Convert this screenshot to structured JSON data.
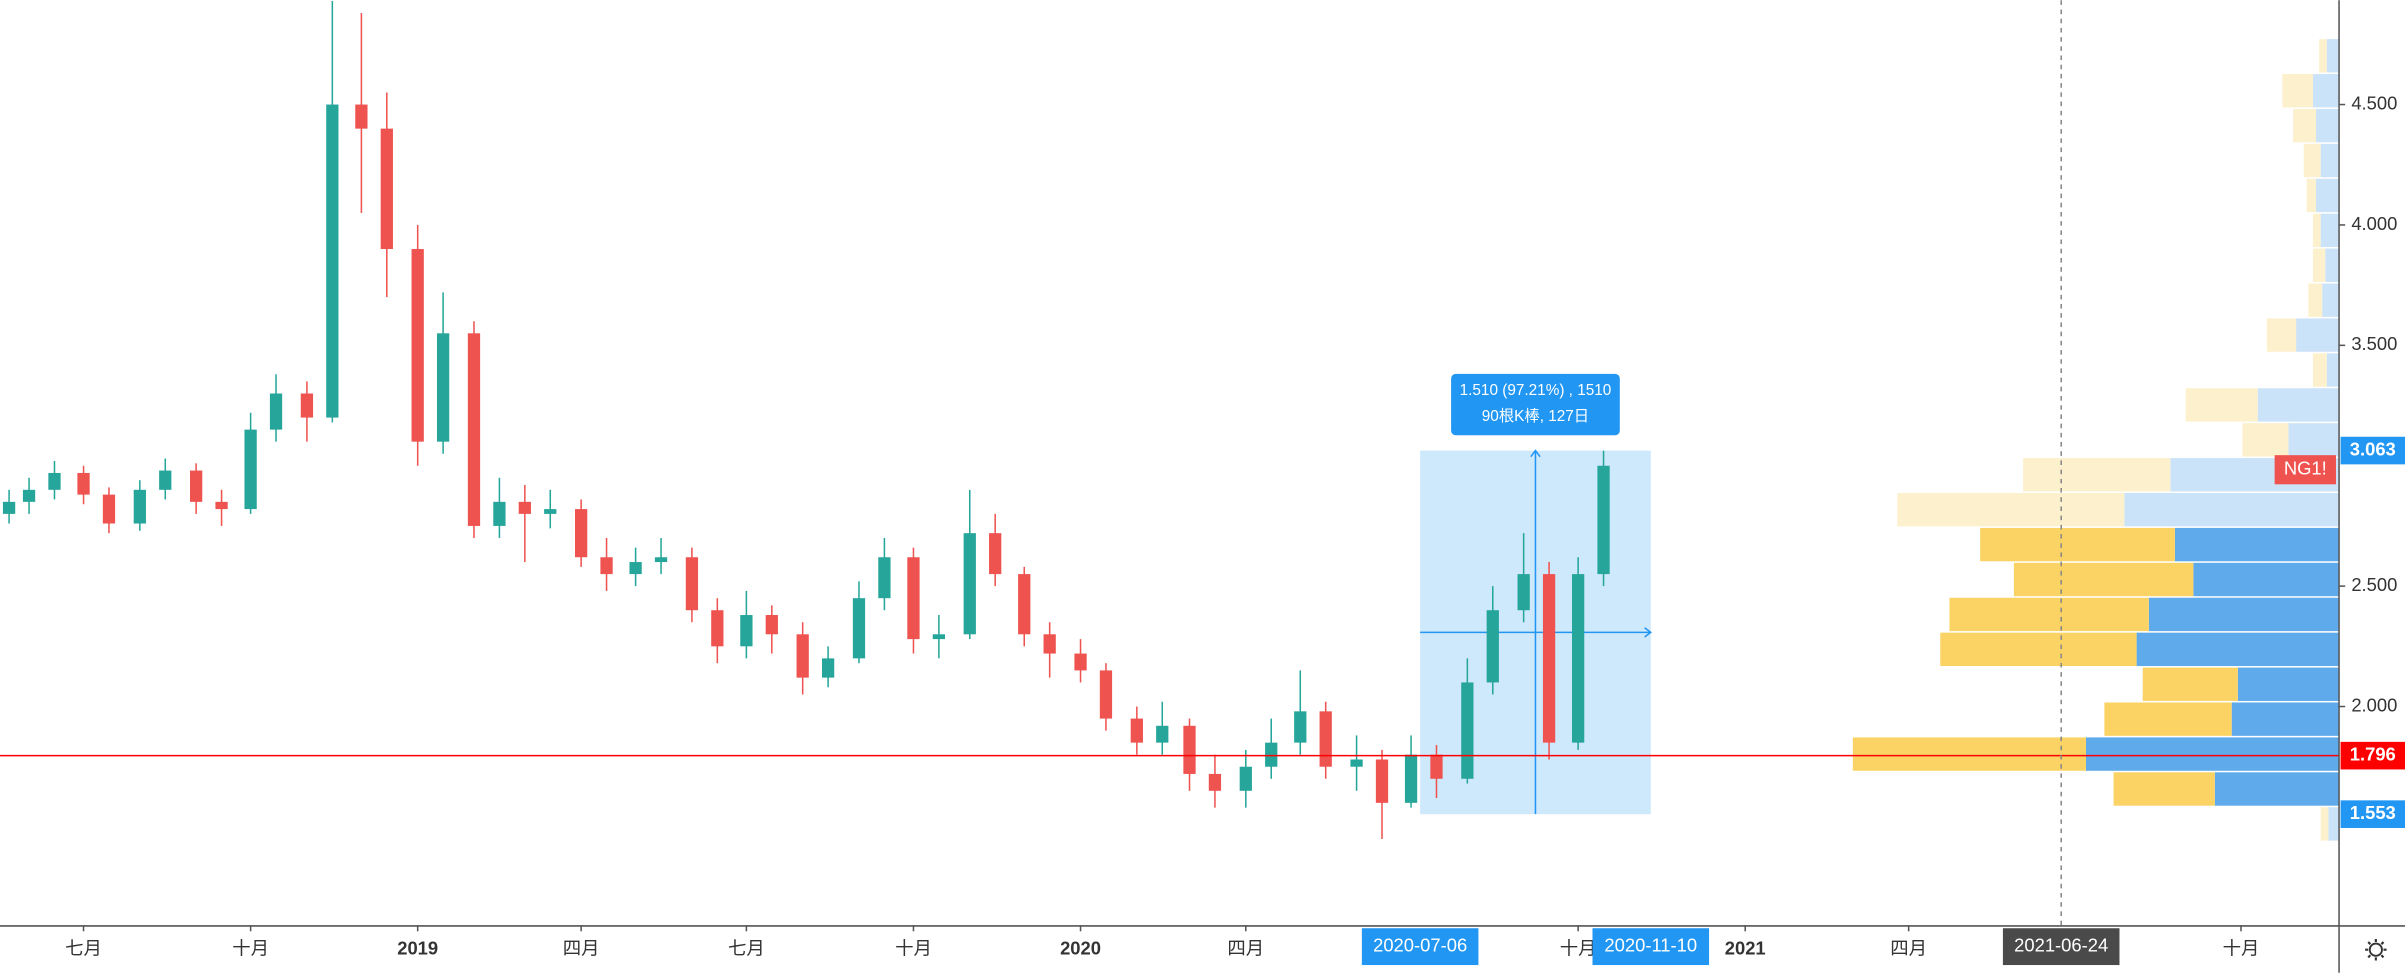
{
  "chart_data": {
    "type": "candlestick",
    "symbol": "NG1!",
    "x": [
      "2018-05-21",
      "2018-06-01",
      "2018-06-15",
      "2018-07-01",
      "2018-07-15",
      "2018-08-01",
      "2018-08-15",
      "2018-09-01",
      "2018-09-15",
      "2018-10-01",
      "2018-10-15",
      "2018-11-01",
      "2018-11-15",
      "2018-12-01",
      "2018-12-15",
      "2019-01-01",
      "2019-01-15",
      "2019-02-01",
      "2019-02-15",
      "2019-03-01",
      "2019-03-15",
      "2019-04-01",
      "2019-04-15",
      "2019-05-01",
      "2019-05-15",
      "2019-06-01",
      "2019-06-15",
      "2019-07-01",
      "2019-07-15",
      "2019-08-01",
      "2019-08-15",
      "2019-09-01",
      "2019-09-15",
      "2019-10-01",
      "2019-10-15",
      "2019-11-01",
      "2019-11-15",
      "2019-12-01",
      "2019-12-15",
      "2020-01-01",
      "2020-01-15",
      "2020-02-01",
      "2020-02-15",
      "2020-03-01",
      "2020-03-15",
      "2020-04-01",
      "2020-04-15",
      "2020-05-01",
      "2020-05-15",
      "2020-06-01",
      "2020-06-15",
      "2020-07-01",
      "2020-07-15",
      "2020-08-01",
      "2020-08-15",
      "2020-09-01",
      "2020-09-15",
      "2020-10-01",
      "2020-10-15"
    ],
    "open": [
      2.8,
      2.85,
      2.9,
      2.97,
      2.88,
      2.76,
      2.9,
      2.98,
      2.85,
      2.82,
      3.15,
      3.3,
      3.2,
      4.5,
      4.4,
      3.9,
      3.1,
      3.55,
      2.75,
      2.85,
      2.8,
      2.82,
      2.62,
      2.55,
      2.6,
      2.62,
      2.4,
      2.25,
      2.38,
      2.3,
      2.12,
      2.2,
      2.45,
      2.62,
      2.28,
      2.3,
      2.72,
      2.55,
      2.3,
      2.22,
      2.15,
      1.95,
      1.85,
      1.92,
      1.72,
      1.65,
      1.75,
      1.85,
      1.98,
      1.75,
      1.78,
      1.6,
      1.8,
      1.7,
      2.1,
      2.4,
      2.55,
      1.85,
      2.55
    ],
    "high": [
      2.9,
      2.95,
      3.02,
      3.0,
      2.91,
      2.94,
      3.03,
      3.01,
      2.9,
      3.22,
      3.38,
      3.35,
      4.93,
      4.88,
      4.55,
      4.0,
      3.72,
      3.6,
      2.95,
      2.92,
      2.9,
      2.86,
      2.7,
      2.66,
      2.7,
      2.66,
      2.45,
      2.48,
      2.42,
      2.35,
      2.25,
      2.52,
      2.7,
      2.66,
      2.38,
      2.9,
      2.8,
      2.58,
      2.35,
      2.28,
      2.18,
      2.0,
      2.02,
      1.95,
      1.8,
      1.82,
      1.95,
      2.15,
      2.02,
      1.88,
      1.82,
      1.88,
      1.84,
      2.2,
      2.5,
      2.72,
      2.6,
      2.62,
      3.063
    ],
    "low": [
      2.76,
      2.8,
      2.86,
      2.84,
      2.72,
      2.73,
      2.86,
      2.8,
      2.75,
      2.8,
      3.1,
      3.1,
      3.18,
      4.05,
      3.7,
      3.0,
      3.05,
      2.7,
      2.7,
      2.6,
      2.74,
      2.58,
      2.48,
      2.5,
      2.55,
      2.35,
      2.18,
      2.2,
      2.22,
      2.05,
      2.08,
      2.18,
      2.4,
      2.22,
      2.2,
      2.28,
      2.5,
      2.25,
      2.12,
      2.1,
      1.9,
      1.8,
      1.8,
      1.65,
      1.58,
      1.58,
      1.7,
      1.8,
      1.7,
      1.65,
      1.45,
      1.58,
      1.62,
      1.68,
      2.05,
      2.35,
      1.78,
      1.82,
      2.5
    ],
    "close": [
      2.85,
      2.9,
      2.97,
      2.88,
      2.76,
      2.9,
      2.98,
      2.85,
      2.82,
      3.15,
      3.3,
      3.2,
      4.5,
      4.4,
      3.9,
      3.1,
      3.55,
      2.75,
      2.85,
      2.8,
      2.82,
      2.62,
      2.55,
      2.6,
      2.62,
      2.4,
      2.25,
      2.38,
      2.3,
      2.12,
      2.2,
      2.45,
      2.62,
      2.28,
      2.3,
      2.72,
      2.55,
      2.3,
      2.22,
      2.15,
      1.95,
      1.85,
      1.92,
      1.72,
      1.65,
      1.75,
      1.85,
      1.98,
      1.75,
      1.78,
      1.6,
      1.8,
      1.7,
      2.1,
      2.4,
      2.55,
      1.85,
      2.55,
      3.0
    ],
    "up_color": "#26a69a",
    "down_color": "#ef5350",
    "xlim": [
      "2018-05-16",
      "2021-11-24"
    ],
    "xticks": [
      {
        "value": "2018-07-01",
        "label": "七月"
      },
      {
        "value": "2018-10-01",
        "label": "十月"
      },
      {
        "value": "2019-01-01",
        "label": "2019"
      },
      {
        "value": "2019-04-01",
        "label": "四月"
      },
      {
        "value": "2019-07-01",
        "label": "七月"
      },
      {
        "value": "2019-10-01",
        "label": "十月"
      },
      {
        "value": "2020-01-01",
        "label": "2020"
      },
      {
        "value": "2020-04-01",
        "label": "四月"
      },
      {
        "value": "2020-10-01",
        "label": "十月"
      },
      {
        "value": "2021-01-01",
        "label": "2021"
      },
      {
        "value": "2021-04-01",
        "label": "四月"
      },
      {
        "value": "2021-10-01",
        "label": "十月"
      }
    ],
    "ylim": [
      1.092,
      4.933
    ],
    "yticks": [
      {
        "value": 2.0,
        "label": "2.000"
      },
      {
        "value": 2.5,
        "label": "2.500"
      },
      {
        "value": 3.5,
        "label": "3.500"
      },
      {
        "value": 4.0,
        "label": "4.000"
      },
      {
        "value": 4.5,
        "label": "4.500"
      }
    ],
    "price_labels": [
      {
        "value": 3.063,
        "label": "3.063",
        "color": "#2196f3"
      },
      {
        "value": 1.796,
        "label": "1.796",
        "color": "#ff0000"
      },
      {
        "value": 1.553,
        "label": "1.553",
        "color": "#2196f3"
      }
    ],
    "symbol_color": "#ef5350",
    "crosshair": {
      "value": "2021-06-24",
      "label": "2021-06-24"
    },
    "measure": {
      "start": "2020-07-06",
      "end": "2020-11-10",
      "low": 1.553,
      "high": 3.063,
      "text": [
        "1.510 (97.21%) , 1510",
        "90根K棒, 127日"
      ],
      "color": "#2196f3"
    },
    "volume_profile": {
      "price_start": 1.44,
      "row_size": 0.145,
      "up": [
        5,
        66,
        152,
        83,
        62,
        128,
        130,
        117,
        127,
        148,
        96,
        30,
        47,
        9,
        19,
        9,
        8,
        5,
        6,
        11,
        15,
        20,
        5
      ],
      "down": [
        7,
        81,
        165,
        70,
        66,
        132,
        124,
        95,
        107,
        140,
        110,
        33,
        53,
        8,
        28,
        11,
        9,
        12,
        15,
        12,
        15,
        17,
        8
      ],
      "value_area": [
        1.585,
        2.745
      ],
      "up_color": "#fbd365",
      "down_color": "#5eaaea",
      "up_color_outside": "#fdf0cc",
      "down_color_outside": "#cbe3f8"
    }
  }
}
